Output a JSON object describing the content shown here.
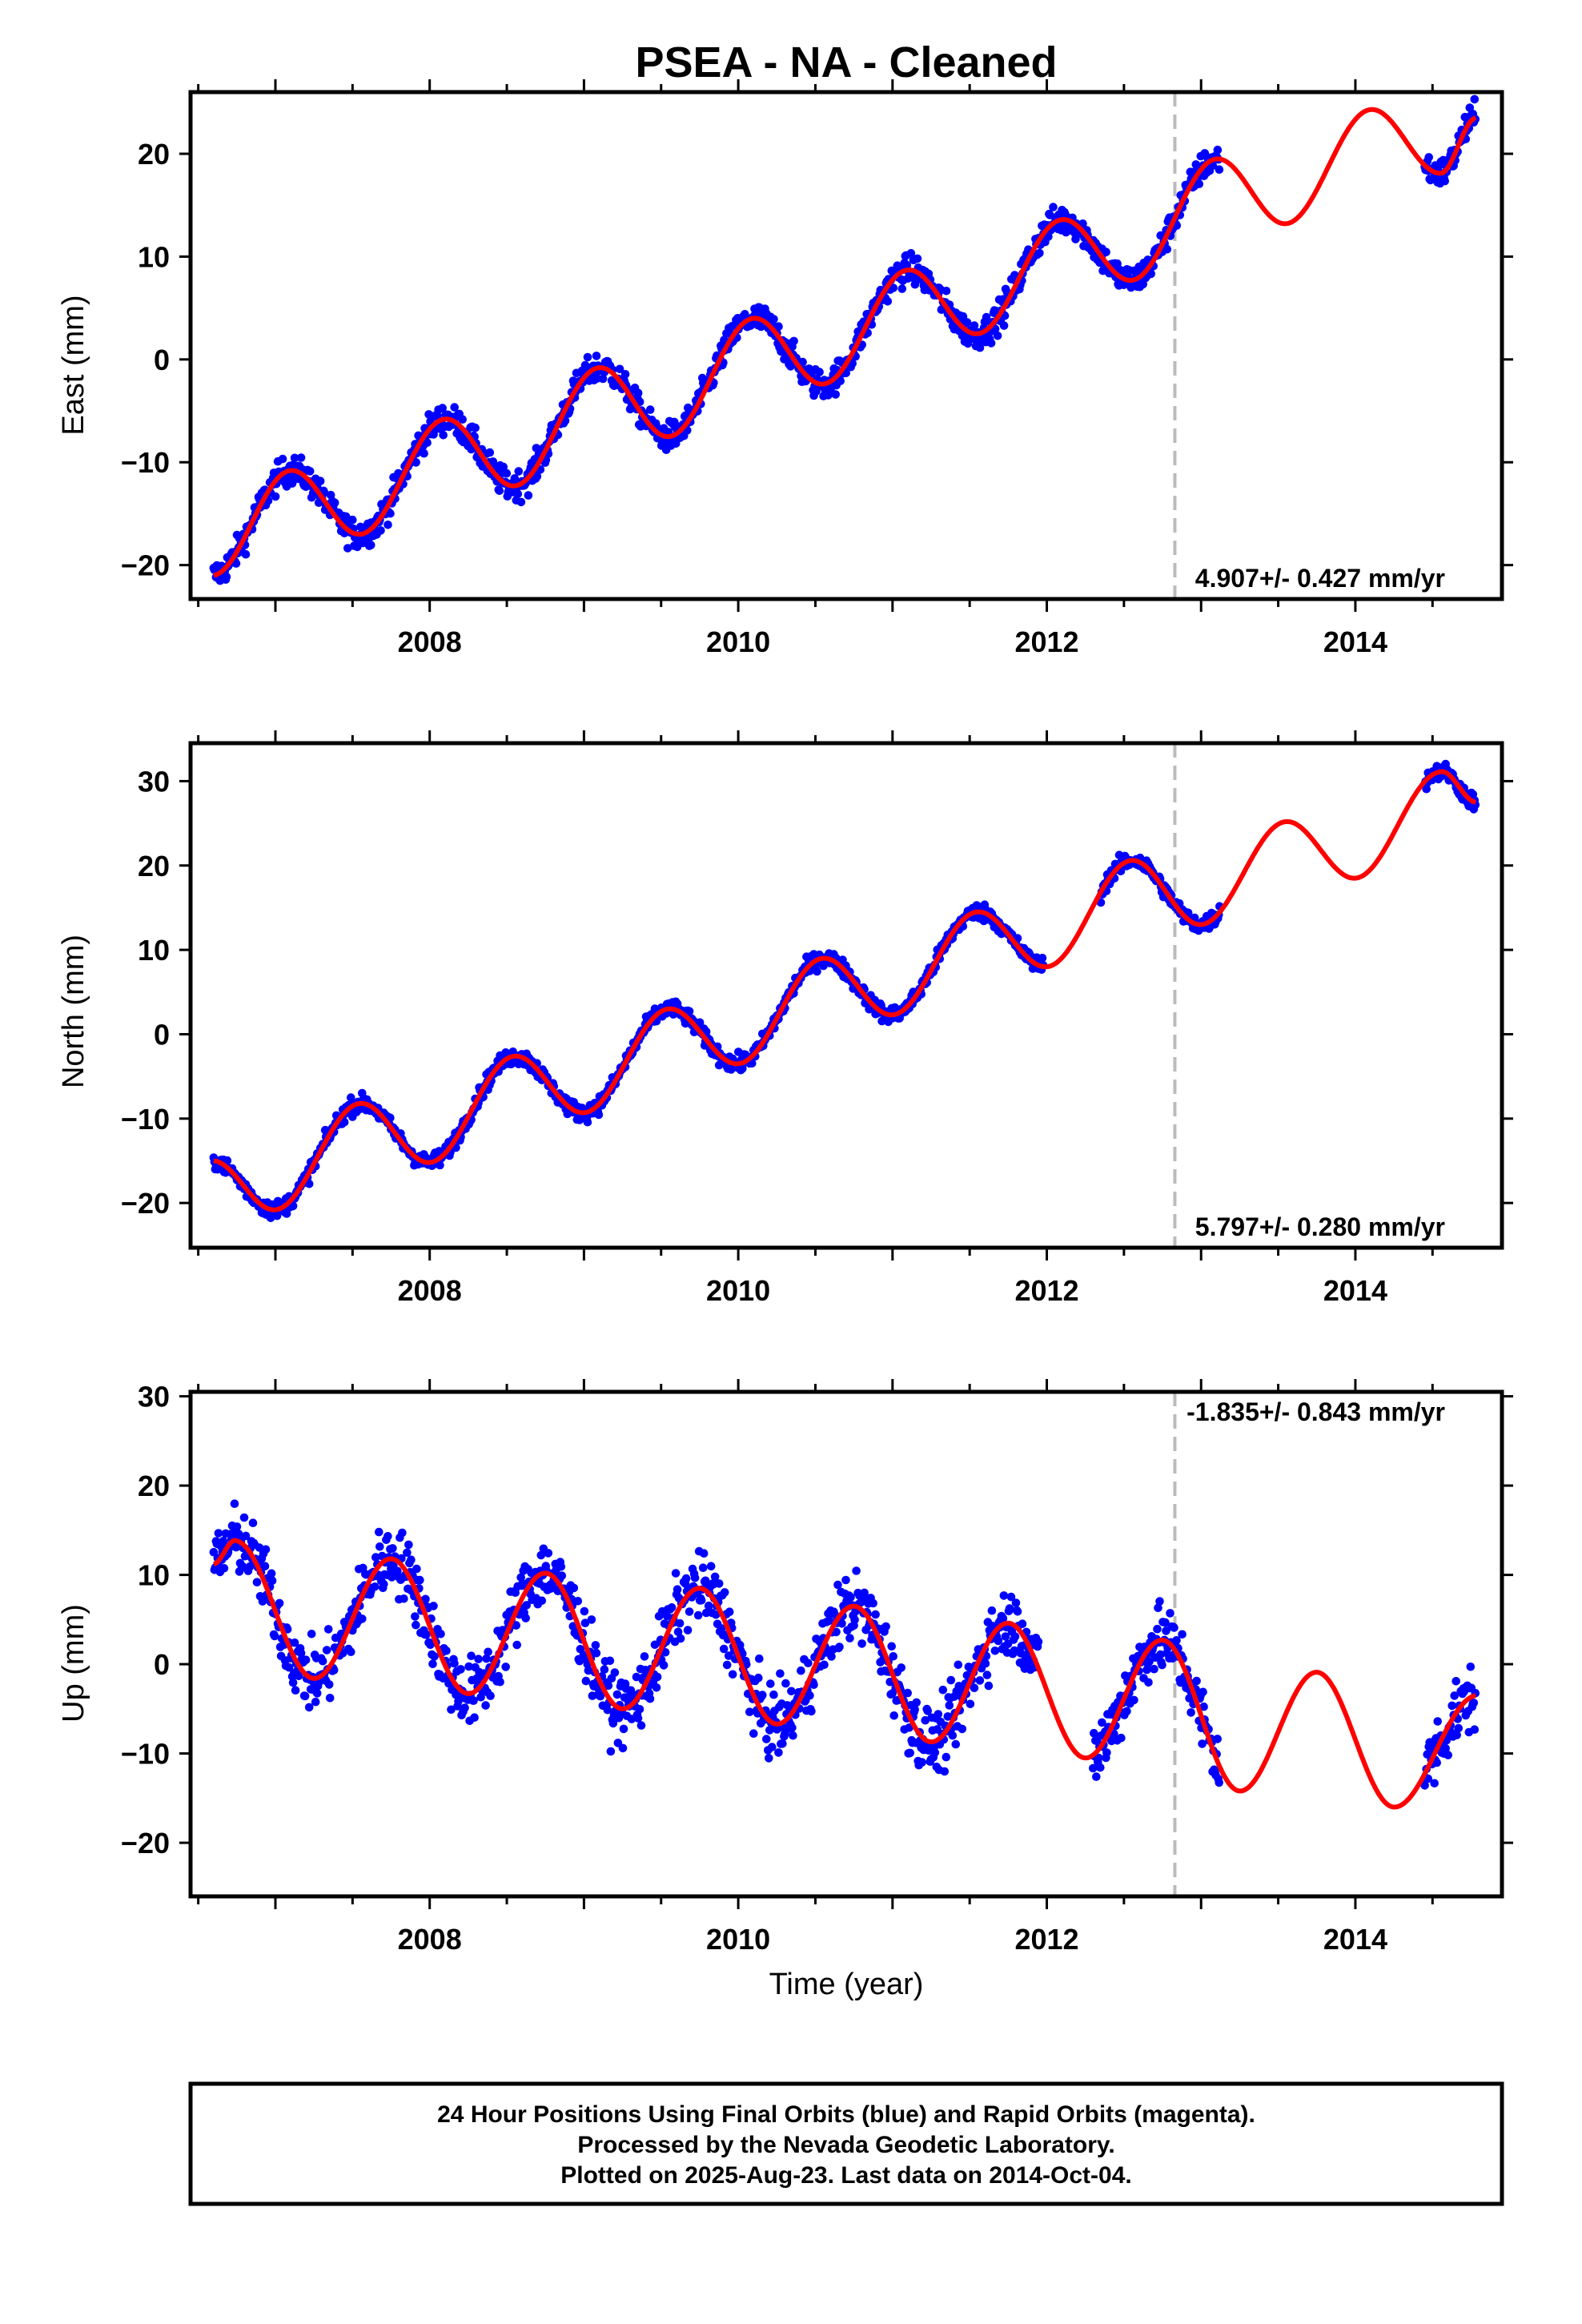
{
  "title": "PSEA  - NA - Cleaned",
  "colors": {
    "data": "#0000ff",
    "model": "#ff0000",
    "event_line": "#bbbbbb",
    "frame": "#000000"
  },
  "chart_data": [
    {
      "type": "scatter",
      "panel": "east",
      "ylabel": "East (mm)",
      "xlabel": "",
      "xlim": [
        2006.45,
        2014.95
      ],
      "ylim": [
        -23.3,
        26.0
      ],
      "yticks": [
        -20,
        -10,
        0,
        10,
        20
      ],
      "xticks": [
        2008,
        2010,
        2012,
        2014
      ],
      "event_line_x": 2012.83,
      "rate_text": "4.907+/- 0.427 mm/yr",
      "rate_position": "bottom-right",
      "series": [
        {
          "kind": "points",
          "segments": [
            [
              2006.6,
              2007.62
            ],
            [
              2007.62,
              2011.75
            ],
            [
              2011.75,
              2013.12
            ],
            [
              2014.45,
              2014.78
            ]
          ],
          "noise": 1.7
        },
        {
          "kind": "model"
        }
      ],
      "model": {
        "x": [
          2006.6,
          2007.1,
          2007.55,
          2008.1,
          2008.55,
          2009.1,
          2009.55,
          2010.1,
          2010.55,
          2011.1,
          2011.55,
          2012.1,
          2012.55,
          2013.1,
          2013.55,
          2014.1,
          2014.55,
          2014.78
        ],
        "y": [
          -21,
          -10.8,
          -17,
          -5.8,
          -12.3,
          -0.8,
          -7.5,
          4.0,
          -2.4,
          8.7,
          2.5,
          13.6,
          7.7,
          19.5,
          13.2,
          24.3,
          18.1,
          23.5
        ]
      }
    },
    {
      "type": "scatter",
      "panel": "north",
      "ylabel": "North (mm)",
      "xlabel": "",
      "xlim": [
        2006.45,
        2014.95
      ],
      "ylim": [
        -25.3,
        34.5
      ],
      "yticks": [
        -20,
        -10,
        0,
        10,
        20,
        30
      ],
      "xticks": [
        2008,
        2010,
        2012,
        2014
      ],
      "event_line_x": 2012.83,
      "rate_text": "5.797+/- 0.280 mm/yr",
      "rate_position": "bottom-right",
      "series": [
        {
          "kind": "points",
          "segments": [
            [
              2006.6,
              2011.98
            ],
            [
              2012.35,
              2013.12
            ],
            [
              2014.45,
              2014.78
            ]
          ],
          "noise": 1.2
        },
        {
          "kind": "model"
        }
      ],
      "model": {
        "x": [
          2006.6,
          2007.0,
          2007.55,
          2008.0,
          2008.55,
          2009.0,
          2009.55,
          2010.0,
          2010.55,
          2011.0,
          2011.55,
          2012.0,
          2012.55,
          2013.0,
          2013.55,
          2014.0,
          2014.55,
          2014.78
        ],
        "y": [
          -15,
          -20.8,
          -8.2,
          -15.2,
          -2.6,
          -9.3,
          3.0,
          -3.5,
          9.0,
          2.3,
          14.5,
          8.0,
          20.6,
          13.0,
          25.2,
          18.5,
          31.1,
          27.5
        ]
      }
    },
    {
      "type": "scatter",
      "panel": "up",
      "ylabel": "Up (mm)",
      "xlabel": "Time (year)",
      "xlim": [
        2006.45,
        2014.95
      ],
      "ylim": [
        -26.0,
        30.5
      ],
      "yticks": [
        -20,
        -10,
        0,
        10,
        20,
        30
      ],
      "xticks": [
        2008,
        2010,
        2012,
        2014
      ],
      "event_line_x": 2012.83,
      "rate_text": "-1.835+/- 0.843 mm/yr",
      "rate_position": "top-right",
      "series": [
        {
          "kind": "points",
          "segments": [
            [
              2006.6,
              2011.95
            ],
            [
              2012.3,
              2013.12
            ],
            [
              2014.45,
              2014.78
            ]
          ],
          "noise": 4.5
        },
        {
          "kind": "model"
        }
      ],
      "model": {
        "x": [
          2006.6,
          2006.75,
          2007.25,
          2007.75,
          2008.25,
          2008.75,
          2009.25,
          2009.75,
          2010.25,
          2010.75,
          2011.25,
          2011.75,
          2012.25,
          2012.75,
          2013.25,
          2013.75,
          2014.25,
          2014.78
        ],
        "y": [
          11.2,
          13.8,
          -1.6,
          11.8,
          -3.3,
          10.2,
          -5.0,
          8.5,
          -6.7,
          6.5,
          -8.7,
          4.6,
          -10.5,
          2.7,
          -14.2,
          -0.9,
          -16.0,
          -3.5
        ]
      }
    }
  ],
  "footer": {
    "line1": "24 Hour Positions Using Final Orbits (blue) and Rapid Orbits (magenta).",
    "line2": "Processed by the Nevada Geodetic Laboratory.",
    "line3": "Plotted on 2025-Aug-23. Last data on 2014-Oct-04."
  }
}
